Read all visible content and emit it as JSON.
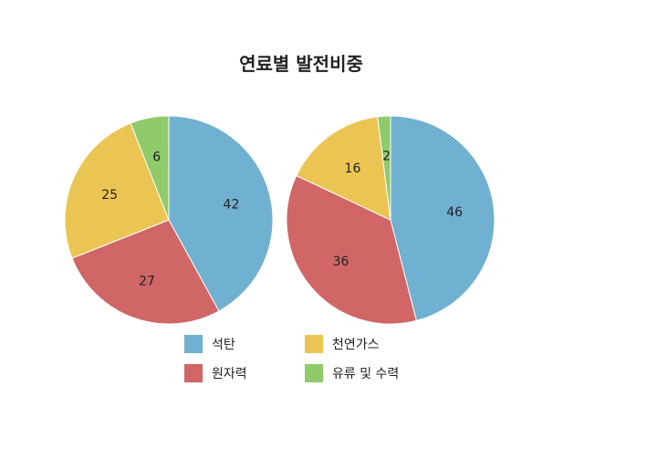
{
  "chart_data": {
    "type": "pie",
    "title": "연료별 발전비중",
    "categories": [
      "석탄",
      "원자력",
      "천연가스",
      "유류 및 수력"
    ],
    "colors": [
      "#70b0d0",
      "#d06666",
      "#ebc553",
      "#8fcb6b"
    ],
    "series": [
      {
        "values": [
          42,
          27,
          25,
          6
        ]
      },
      {
        "values": [
          46,
          36,
          16,
          2
        ]
      }
    ],
    "legend_position": "bottom"
  }
}
